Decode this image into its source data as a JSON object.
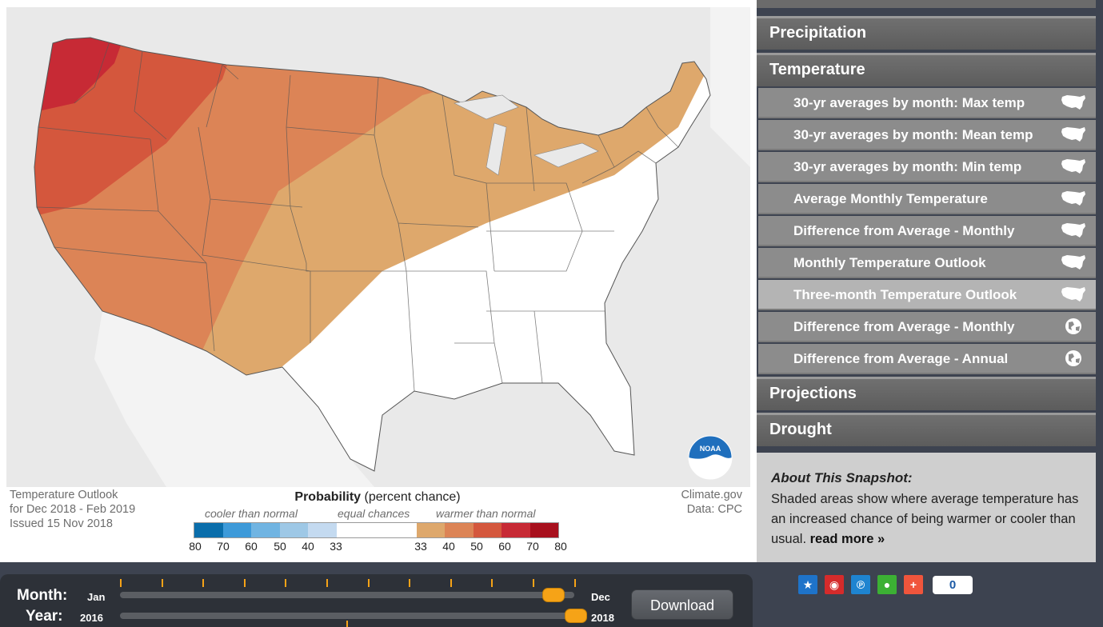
{
  "map": {
    "info_left": [
      "Temperature Outlook",
      "for Dec 2018 - Feb 2019",
      "Issued 15 Nov 2018"
    ],
    "info_right": [
      "Climate.gov",
      "Data: CPC"
    ],
    "noaa_logo_text": "NOAA",
    "legend": {
      "title_bold": "Probability",
      "title_rest": " (percent chance)",
      "cooler": "cooler than normal",
      "equal": "equal chances",
      "warmer": "warmer than normal",
      "cool_ticks": [
        "80",
        "70",
        "60",
        "50",
        "40",
        "33"
      ],
      "warm_ticks": [
        "33",
        "40",
        "50",
        "60",
        "70",
        "80"
      ],
      "cool_colors": [
        "#0a6eab",
        "#3d9ad9",
        "#70b4e2",
        "#9ec8e6",
        "#c4daf0"
      ],
      "equal_color": "#ffffff",
      "warm_colors": [
        "#dea86c",
        "#dc8456",
        "#d4573d",
        "#c72a35",
        "#a8101d"
      ]
    }
  },
  "sidebar": {
    "categories": {
      "precipitation": "Precipitation",
      "temperature": "Temperature",
      "projections": "Projections",
      "drought": "Drought"
    },
    "items": [
      {
        "label": "30-yr averages by month: Max temp",
        "icon": "us-map-icon"
      },
      {
        "label": "30-yr averages by month: Mean temp",
        "icon": "us-map-icon"
      },
      {
        "label": "30-yr averages by month: Min temp",
        "icon": "us-map-icon"
      },
      {
        "label": "Average Monthly Temperature",
        "icon": "us-map-icon"
      },
      {
        "label": "Difference from Average - Monthly",
        "icon": "us-map-icon"
      },
      {
        "label": "Monthly Temperature Outlook",
        "icon": "us-map-icon"
      },
      {
        "label": "Three-month Temperature Outlook",
        "icon": "us-map-icon",
        "active": true
      },
      {
        "label": "Difference from Average - Monthly",
        "icon": "globe-icon"
      },
      {
        "label": "Difference from Average - Annual",
        "icon": "globe-icon"
      }
    ],
    "about": {
      "title": "About This Snapshot:",
      "text": "Shaded areas show where average temperature has an increased chance of being warmer or cooler than usual. ",
      "read_more": "read more »"
    }
  },
  "controls": {
    "month_label": "Month:",
    "month_start": "Jan",
    "month_end": "Dec",
    "month_selected_fraction": 0.955,
    "year_label": "Year:",
    "year_start": "2016",
    "year_end": "2018",
    "year_selected_fraction": 1.0,
    "download_label": "Download"
  },
  "share": {
    "buttons": [
      "favorite",
      "weibo",
      "pixiv",
      "wechat",
      "more"
    ],
    "count": "0",
    "colors": {
      "favorite": "#1e73c9",
      "weibo": "#d52b2b",
      "pixiv": "#1e84d0",
      "wechat": "#3cb034",
      "more": "#f0553c"
    }
  }
}
